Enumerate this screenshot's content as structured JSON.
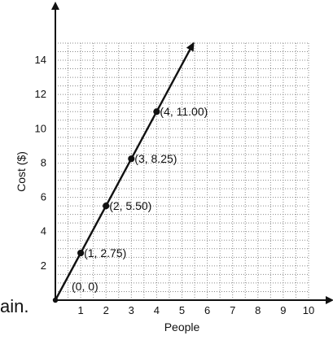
{
  "chart_data": {
    "type": "line",
    "xlabel": "People",
    "ylabel": "Cost ($)",
    "xlim": [
      0,
      10
    ],
    "ylim": [
      0,
      15
    ],
    "x_ticks": [
      1,
      2,
      3,
      4,
      5,
      6,
      7,
      8,
      9,
      10
    ],
    "y_ticks": [
      2,
      4,
      6,
      8,
      10,
      12,
      14
    ],
    "grid": "dotted, minor every 0.5 units",
    "line": {
      "slope": 2.75,
      "intercept": 0,
      "x_range": [
        0,
        5.45
      ],
      "arrow_end": true
    },
    "points": [
      {
        "x": 0,
        "y": 0,
        "label": "(0, 0)"
      },
      {
        "x": 1,
        "y": 2.75,
        "label": "(1, 2.75)"
      },
      {
        "x": 2,
        "y": 5.5,
        "label": "(2, 5.50)"
      },
      {
        "x": 3,
        "y": 8.25,
        "label": "(3, 8.25)"
      },
      {
        "x": 4,
        "y": 11.0,
        "label": "(4, 11.00)"
      }
    ],
    "colors": {
      "axis": "#111111",
      "grid": "#8a8a8a",
      "line": "#111111",
      "point": "#111111"
    }
  },
  "cutoff_text": "ain."
}
